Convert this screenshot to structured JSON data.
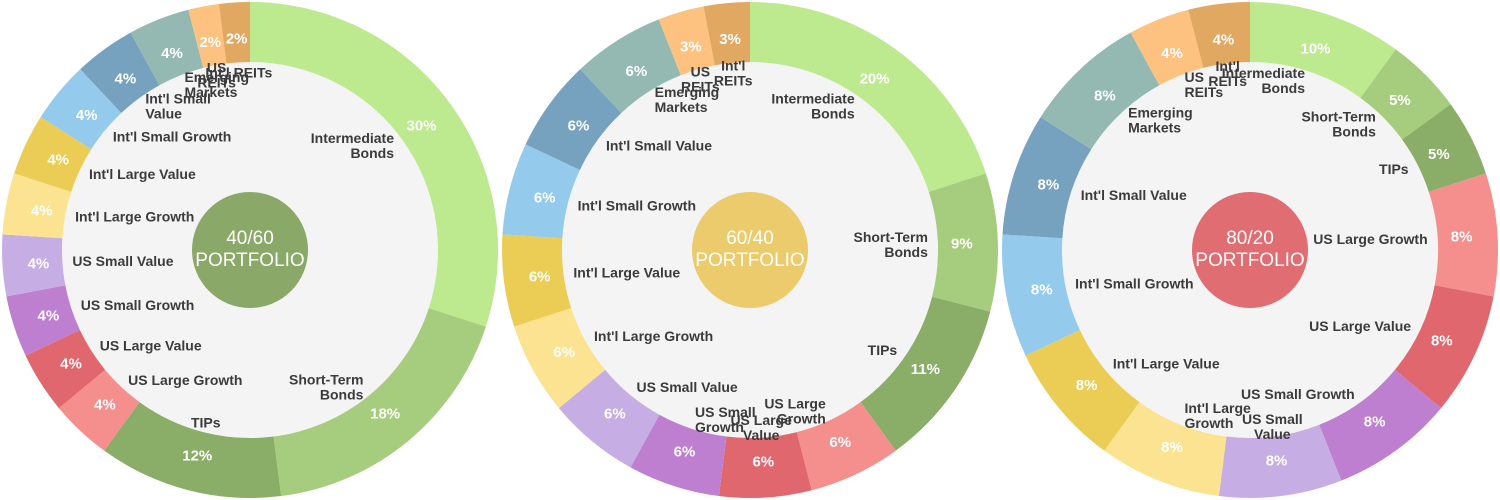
{
  "chart_data": [
    {
      "type": "pie",
      "title": "40/60 PORTFOLIO",
      "center_label": [
        "40/60",
        "PORTFOLIO"
      ],
      "center_color": "#8aa867",
      "slices": [
        {
          "name": "Intermediate Bonds",
          "label_lines": [
            "Intermediate",
            "Bonds"
          ],
          "value": 30,
          "display": "30%",
          "color": "#bde98f"
        },
        {
          "name": "Short-Term Bonds",
          "label_lines": [
            "Short-Term",
            "Bonds"
          ],
          "value": 18,
          "display": "18%",
          "color": "#a6cc7d"
        },
        {
          "name": "TIPs",
          "label_lines": [
            "TIPs"
          ],
          "value": 12,
          "display": "12%",
          "color": "#8aad68"
        },
        {
          "name": "US Large Growth",
          "label_lines": [
            "US Large Growth"
          ],
          "value": 4,
          "display": "4%",
          "color": "#f58f8e"
        },
        {
          "name": "US Large Value",
          "label_lines": [
            "US Large Value"
          ],
          "value": 4,
          "display": "4%",
          "color": "#e0676d"
        },
        {
          "name": "US Small Growth",
          "label_lines": [
            "US Small Growth"
          ],
          "value": 4,
          "display": "4%",
          "color": "#bf7fd0"
        },
        {
          "name": "US Small Value",
          "label_lines": [
            "US Small Value"
          ],
          "value": 4,
          "display": "4%",
          "color": "#c6aee4"
        },
        {
          "name": "Int'l Large Growth",
          "label_lines": [
            "Int'l Large Growth"
          ],
          "value": 4,
          "display": "4%",
          "color": "#fbe391"
        },
        {
          "name": "Int'l Large Value",
          "label_lines": [
            "Int'l Large Value"
          ],
          "value": 4,
          "display": "4%",
          "color": "#ebcd55"
        },
        {
          "name": "Int'l Small Growth",
          "label_lines": [
            "Int'l Small Growth"
          ],
          "value": 4,
          "display": "4%",
          "color": "#94cbec"
        },
        {
          "name": "Int'l Small Value",
          "label_lines": [
            "Int'l Small",
            "Value"
          ],
          "value": 4,
          "display": "4%",
          "color": "#76a2c0"
        },
        {
          "name": "Emerging Markets",
          "label_lines": [
            "Emerging",
            "Markets"
          ],
          "value": 4,
          "display": "4%",
          "color": "#93b9b2"
        },
        {
          "name": "US REITs",
          "label_lines": [
            "US",
            "REITs"
          ],
          "value": 2,
          "display": "2%",
          "color": "#fdc27f"
        },
        {
          "name": "Int'l REITs",
          "label_lines": [
            "Int'l REITs"
          ],
          "value": 2,
          "display": "2%",
          "color": "#e1a862"
        }
      ]
    },
    {
      "type": "pie",
      "title": "60/40 PORTFOLIO",
      "center_label": [
        "60/40",
        "PORTFOLIO"
      ],
      "center_color": "#ebcb6b",
      "slices": [
        {
          "name": "Intermediate Bonds",
          "label_lines": [
            "Intermediate",
            "Bonds"
          ],
          "value": 20,
          "display": "20%",
          "color": "#bde98f"
        },
        {
          "name": "Short-Term Bonds",
          "label_lines": [
            "Short-Term",
            "Bonds"
          ],
          "value": 9,
          "display": "9%",
          "color": "#a6cc7d"
        },
        {
          "name": "TIPs",
          "label_lines": [
            "TIPs"
          ],
          "value": 11,
          "display": "11%",
          "color": "#8aad68"
        },
        {
          "name": "US Large Growth",
          "label_lines": [
            "US Large",
            "Growth"
          ],
          "value": 6,
          "display": "6%",
          "color": "#f58f8e"
        },
        {
          "name": "US Large Value",
          "label_lines": [
            "US Large",
            "Value"
          ],
          "value": 6,
          "display": "6%",
          "color": "#e0676d"
        },
        {
          "name": "US Small Growth",
          "label_lines": [
            "US Small",
            "Growth"
          ],
          "value": 6,
          "display": "6%",
          "color": "#bf7fd0"
        },
        {
          "name": "US Small Value",
          "label_lines": [
            "US Small Value"
          ],
          "value": 6,
          "display": "6%",
          "color": "#c6aee4"
        },
        {
          "name": "Int'l Large Growth",
          "label_lines": [
            "Int'l Large Growth"
          ],
          "value": 6,
          "display": "6%",
          "color": "#fbe391"
        },
        {
          "name": "Int'l Large Value",
          "label_lines": [
            "Int'l Large Value"
          ],
          "value": 6,
          "display": "6%",
          "color": "#ebcd55"
        },
        {
          "name": "Int'l Small Growth",
          "label_lines": [
            "Int'l Small Growth"
          ],
          "value": 6,
          "display": "6%",
          "color": "#94cbec"
        },
        {
          "name": "Int'l Small Value",
          "label_lines": [
            "Int'l Small Value"
          ],
          "value": 6,
          "display": "6%",
          "color": "#76a2c0"
        },
        {
          "name": "Emerging Markets",
          "label_lines": [
            "Emerging",
            "Markets"
          ],
          "value": 6,
          "display": "6%",
          "color": "#93b9b2"
        },
        {
          "name": "US REITs",
          "label_lines": [
            "US",
            "REITs"
          ],
          "value": 3,
          "display": "3%",
          "color": "#fdc27f"
        },
        {
          "name": "Int'l REITs",
          "label_lines": [
            "Int'l",
            "REITs"
          ],
          "value": 3,
          "display": "3%",
          "color": "#e1a862"
        }
      ]
    },
    {
      "type": "pie",
      "title": "80/20 PORTFOLIO",
      "center_label": [
        "80/20",
        "PORTFOLIO"
      ],
      "center_color": "#e06d72",
      "slices": [
        {
          "name": "Intermediate Bonds",
          "label_lines": [
            "Intermediate",
            "Bonds"
          ],
          "value": 10,
          "display": "10%",
          "color": "#bde98f"
        },
        {
          "name": "Short-Term Bonds",
          "label_lines": [
            "Short-Term",
            "Bonds"
          ],
          "value": 5,
          "display": "5%",
          "color": "#a6cc7d"
        },
        {
          "name": "TIPs",
          "label_lines": [
            "TIPs"
          ],
          "value": 5,
          "display": "5%",
          "color": "#8aad68"
        },
        {
          "name": "US Large Growth",
          "label_lines": [
            "US Large Growth"
          ],
          "value": 8,
          "display": "8%",
          "color": "#f58f8e"
        },
        {
          "name": "US Large Value",
          "label_lines": [
            "US Large Value"
          ],
          "value": 8,
          "display": "8%",
          "color": "#e0676d"
        },
        {
          "name": "US Small Growth",
          "label_lines": [
            "US Small Growth"
          ],
          "value": 8,
          "display": "8%",
          "color": "#bf7fd0"
        },
        {
          "name": "US Small Value",
          "label_lines": [
            "US Small",
            "Value"
          ],
          "value": 8,
          "display": "8%",
          "color": "#c6aee4"
        },
        {
          "name": "Int'l Large Growth",
          "label_lines": [
            "Int'l Large",
            "Growth"
          ],
          "value": 8,
          "display": "8%",
          "color": "#fbe391"
        },
        {
          "name": "Int'l Large Value",
          "label_lines": [
            "Int'l Large Value"
          ],
          "value": 8,
          "display": "8%",
          "color": "#ebcd55"
        },
        {
          "name": "Int'l Small Growth",
          "label_lines": [
            "Int'l Small Growth"
          ],
          "value": 8,
          "display": "8%",
          "color": "#94cbec"
        },
        {
          "name": "Int'l Small Value",
          "label_lines": [
            "Int'l Small Value"
          ],
          "value": 8,
          "display": "8%",
          "color": "#76a2c0"
        },
        {
          "name": "Emerging Markets",
          "label_lines": [
            "Emerging",
            "Markets"
          ],
          "value": 8,
          "display": "8%",
          "color": "#93b9b2"
        },
        {
          "name": "US REITs",
          "label_lines": [
            "US",
            "REITs"
          ],
          "value": 4,
          "display": "4%",
          "color": "#fdc27f"
        },
        {
          "name": "Int'l REITs",
          "label_lines": [
            "Int'l",
            "REITs"
          ],
          "value": 4,
          "display": "4%",
          "color": "#e1a862"
        }
      ]
    }
  ]
}
